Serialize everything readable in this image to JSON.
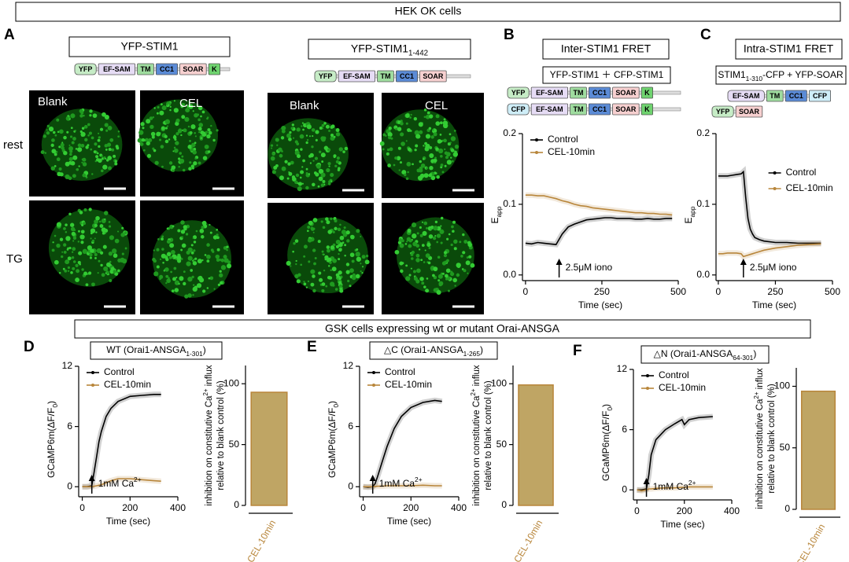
{
  "header": "HEK OK cells",
  "panel_labels": [
    "A",
    "B",
    "C",
    "D",
    "E",
    "F"
  ],
  "panel_a": {
    "constructs": [
      {
        "title": [
          {
            "text": "YFP-STIM1"
          }
        ],
        "domains": [
          {
            "name": "YFP",
            "color": "#c6ecc6"
          },
          {
            "name": "EF-SAM",
            "color": "#e6dcf5"
          },
          {
            "name": "TM",
            "color": "#9fdc9f"
          },
          {
            "name": "CC1",
            "color": "#5b8bd6"
          },
          {
            "name": "SOAR",
            "color": "#f7d0d0"
          },
          {
            "name": "K",
            "color": "#6fd36f"
          }
        ]
      },
      {
        "title": [
          {
            "text": "YFP-STIM1"
          },
          {
            "text": "1-442",
            "sub": true
          }
        ],
        "domains": [
          {
            "name": "YFP",
            "color": "#c6ecc6"
          },
          {
            "name": "EF-SAM",
            "color": "#e6dcf5"
          },
          {
            "name": "TM",
            "color": "#9fdc9f"
          },
          {
            "name": "CC1",
            "color": "#5b8bd6"
          },
          {
            "name": "SOAR",
            "color": "#f7d0d0"
          }
        ]
      }
    ],
    "image_labels": [
      "Blank",
      "CEL",
      "Blank",
      "CEL"
    ],
    "row_labels": [
      "rest",
      "TG"
    ]
  },
  "panel_b": {
    "title": "Inter-STIM1 FRET",
    "subtitle": [
      {
        "text": "YFP-STIM1 ＋ CFP-STIM1"
      }
    ],
    "constructs": [
      [
        {
          "name": "YFP",
          "color": "#c6ecc6"
        },
        {
          "name": "EF-SAM",
          "color": "#e6dcf5"
        },
        {
          "name": "TM",
          "color": "#9fdc9f"
        },
        {
          "name": "CC1",
          "color": "#5b8bd6"
        },
        {
          "name": "SOAR",
          "color": "#f7d0d0"
        },
        {
          "name": "K",
          "color": "#6fd36f"
        }
      ],
      [
        {
          "name": "CFP",
          "color": "#cfeef8"
        },
        {
          "name": "EF-SAM",
          "color": "#e6dcf5"
        },
        {
          "name": "TM",
          "color": "#9fdc9f"
        },
        {
          "name": "CC1",
          "color": "#5b8bd6"
        },
        {
          "name": "SOAR",
          "color": "#f7d0d0"
        },
        {
          "name": "K",
          "color": "#6fd36f"
        }
      ]
    ]
  },
  "panel_c": {
    "title": "Intra-STIM1 FRET",
    "subtitle": [
      {
        "text": "STIM1"
      },
      {
        "text": "1-310",
        "sub": true
      },
      {
        "text": "-CFP + YFP-SOAR"
      }
    ],
    "constructs": [
      [
        {
          "name": "EF-SAM",
          "color": "#e6dcf5"
        },
        {
          "name": "TM",
          "color": "#9fdc9f"
        },
        {
          "name": "CC1",
          "color": "#5b8bd6"
        },
        {
          "name": "CFP",
          "color": "#cfeef8"
        }
      ],
      [
        {
          "name": "YFP",
          "color": "#c6ecc6"
        },
        {
          "name": "SOAR",
          "color": "#f7d0d0"
        }
      ]
    ]
  },
  "section_header": "GSK cells expressing wt or mutant Orai-ANSGA",
  "chart_data": [
    {
      "type": "line",
      "x": [
        0,
        20,
        40,
        60,
        80,
        100,
        120,
        140,
        160,
        180,
        200,
        220,
        240,
        260,
        280,
        300,
        320,
        340,
        360,
        380,
        400,
        420,
        440,
        460,
        480
      ],
      "series": [
        {
          "name": "Control",
          "color": "#000000",
          "values": [
            0.045,
            0.044,
            0.046,
            0.045,
            0.044,
            0.043,
            0.058,
            0.068,
            0.072,
            0.075,
            0.078,
            0.079,
            0.08,
            0.081,
            0.081,
            0.08,
            0.08,
            0.08,
            0.079,
            0.079,
            0.08,
            0.079,
            0.079,
            0.08,
            0.08
          ]
        },
        {
          "name": "CEL-10min",
          "color": "#b8863b",
          "values": [
            0.113,
            0.113,
            0.112,
            0.112,
            0.11,
            0.108,
            0.105,
            0.103,
            0.1,
            0.098,
            0.097,
            0.095,
            0.094,
            0.093,
            0.092,
            0.091,
            0.09,
            0.089,
            0.088,
            0.088,
            0.087,
            0.087,
            0.086,
            0.086,
            0.085
          ]
        }
      ],
      "xlim": [
        -10,
        500
      ],
      "ylim": [
        -0.008,
        0.2
      ],
      "xticks": [
        0,
        250,
        500
      ],
      "yticks": [
        {
          "value": 0,
          "label": "0.0"
        },
        0.1,
        0.2
      ],
      "xlabel": [
        {
          "text": "Time (sec)"
        }
      ],
      "ylabel": [
        {
          "text": "E"
        },
        {
          "text": "app",
          "sub": true
        }
      ],
      "legend": "upper left",
      "annotation": {
        "text": [
          {
            "text": "2.5μM iono"
          }
        ],
        "x": 110
      }
    },
    {
      "type": "line",
      "x": [
        0,
        20,
        40,
        60,
        80,
        100,
        110,
        120,
        130,
        140,
        150,
        160,
        180,
        200,
        250,
        300,
        350,
        400,
        450
      ],
      "series": [
        {
          "name": "Control",
          "color": "#000000",
          "values": [
            0.14,
            0.14,
            0.14,
            0.141,
            0.142,
            0.143,
            0.146,
            0.11,
            0.08,
            0.065,
            0.058,
            0.053,
            0.05,
            0.048,
            0.046,
            0.046,
            0.045,
            0.045,
            0.045
          ]
        },
        {
          "name": "CEL-10min",
          "color": "#b8863b",
          "values": [
            0.03,
            0.03,
            0.031,
            0.031,
            0.031,
            0.03,
            0.026,
            0.027,
            0.028,
            0.029,
            0.03,
            0.031,
            0.033,
            0.035,
            0.038,
            0.04,
            0.042,
            0.043,
            0.044
          ]
        }
      ],
      "xlim": [
        -10,
        500
      ],
      "ylim": [
        -0.008,
        0.2
      ],
      "xticks": [
        0,
        250,
        500
      ],
      "yticks": [
        {
          "value": 0,
          "label": "0.0"
        },
        0.1,
        0.2
      ],
      "xlabel": [
        {
          "text": "Time (sec)"
        }
      ],
      "ylabel": [
        {
          "text": "E"
        },
        {
          "text": "app",
          "sub": true
        }
      ],
      "legend": "upper right",
      "annotation": {
        "text": [
          {
            "text": "2.5μM iono"
          }
        ],
        "x": 110
      }
    },
    {
      "type": "line",
      "title": [
        {
          "text": "WT (Orai1-ANSGA"
        },
        {
          "text": "1-301",
          "sub": true
        },
        {
          "text": ")"
        }
      ],
      "x": [
        0,
        20,
        40,
        50,
        60,
        70,
        80,
        100,
        120,
        150,
        200,
        250,
        300,
        330
      ],
      "series": [
        {
          "name": "Control",
          "color": "#000000",
          "values": [
            0,
            0,
            0.1,
            1.5,
            3,
            4.5,
            5.5,
            7,
            7.8,
            8.5,
            9,
            9.1,
            9.2,
            9.2
          ]
        },
        {
          "name": "CEL-10min",
          "color": "#b8863b",
          "values": [
            0,
            0,
            0,
            0.05,
            0.1,
            0.15,
            0.2,
            0.4,
            0.6,
            0.8,
            0.8,
            0.7,
            0.6,
            0.55
          ]
        }
      ],
      "xlim": [
        -15,
        400
      ],
      "ylim": [
        -1,
        12
      ],
      "xticks": [
        0,
        200,
        400
      ],
      "yticks": [
        0,
        6,
        12
      ],
      "xlabel": [
        {
          "text": "Time (sec)"
        }
      ],
      "ylabel": [
        {
          "text": "GCaMP6m(ΔF/F"
        },
        {
          "text": "0",
          "sub": true
        },
        {
          "text": ")"
        }
      ],
      "legend": "upper left",
      "annotation": {
        "text": [
          {
            "text": "1mM Ca"
          },
          {
            "text": "2+",
            "sup": true
          }
        ],
        "x": 40
      }
    },
    {
      "type": "bar",
      "categories": [
        "CEL-10min"
      ],
      "values": [
        93
      ],
      "color": "#bfa564",
      "edge_color": "#b8863b",
      "ylim": [
        0,
        115
      ],
      "yticks": [
        0,
        50,
        100
      ],
      "ylabel": [
        [
          {
            "text": "inhibition on constitutive Ca"
          },
          {
            "text": "2+",
            "sup": true
          },
          {
            "text": " influx"
          }
        ],
        [
          {
            "text": "relative to blank control (%)"
          }
        ]
      ]
    },
    {
      "type": "line",
      "title": [
        {
          "text": "△C (Orai1-ANSGA"
        },
        {
          "text": "1-265",
          "sub": true
        },
        {
          "text": ")"
        }
      ],
      "x": [
        0,
        20,
        40,
        50,
        60,
        80,
        100,
        130,
        160,
        200,
        250,
        300,
        330
      ],
      "series": [
        {
          "name": "Control",
          "color": "#000000",
          "values": [
            0,
            -0.05,
            0,
            0.3,
            1,
            2.5,
            4,
            5.8,
            7,
            7.9,
            8.4,
            8.6,
            8.5
          ]
        },
        {
          "name": "CEL-10min",
          "color": "#b8863b",
          "values": [
            0,
            0,
            0,
            0,
            0.05,
            0.05,
            0.1,
            0.1,
            0.1,
            0.1,
            0.15,
            0.1,
            0.1
          ]
        }
      ],
      "xlim": [
        -15,
        400
      ],
      "ylim": [
        -1,
        12
      ],
      "xticks": [
        0,
        200,
        400
      ],
      "yticks": [
        0,
        6,
        12
      ],
      "xlabel": [
        {
          "text": "Time (sec)"
        }
      ],
      "ylabel": [
        {
          "text": "GCaMP6m(ΔF/F"
        },
        {
          "text": "0",
          "sub": true
        },
        {
          "text": ")"
        }
      ],
      "legend": "upper left",
      "annotation": {
        "text": [
          {
            "text": "1mM Ca"
          },
          {
            "text": "2+",
            "sup": true
          }
        ],
        "x": 40
      }
    },
    {
      "type": "bar",
      "categories": [
        "CEL-10min"
      ],
      "values": [
        99
      ],
      "color": "#bfa564",
      "edge_color": "#b8863b",
      "ylim": [
        0,
        115
      ],
      "yticks": [
        0,
        50,
        100
      ],
      "ylabel": [
        [
          {
            "text": "inhibition on constitutive Ca"
          },
          {
            "text": "2+",
            "sup": true
          },
          {
            "text": " influx"
          }
        ],
        [
          {
            "text": "relative to blank control (%)"
          }
        ]
      ]
    },
    {
      "type": "line",
      "title": [
        {
          "text": "△N (Orai1-ANSGA"
        },
        {
          "text": "64-301",
          "sub": true
        },
        {
          "text": ")"
        }
      ],
      "x": [
        0,
        20,
        40,
        50,
        60,
        80,
        120,
        160,
        190,
        200,
        220,
        260,
        320
      ],
      "series": [
        {
          "name": "Control",
          "color": "#000000",
          "values": [
            0,
            0,
            0.1,
            1.5,
            3.5,
            5,
            6,
            6.6,
            7,
            6.5,
            7,
            7.2,
            7.3
          ]
        },
        {
          "name": "CEL-10min",
          "color": "#b8863b",
          "values": [
            0,
            -0.1,
            0,
            0.1,
            0.1,
            0.15,
            0.2,
            0.2,
            0.25,
            0.25,
            0.3,
            0.3,
            0.3
          ]
        }
      ],
      "xlim": [
        -15,
        400
      ],
      "ylim": [
        -1,
        12
      ],
      "xticks": [
        0,
        200,
        400
      ],
      "yticks": [
        0,
        6,
        12
      ],
      "xlabel": [
        {
          "text": "Time (sec)"
        }
      ],
      "ylabel": [
        {
          "text": "GCaMP6m(ΔF/F"
        },
        {
          "text": "0",
          "sub": true
        },
        {
          "text": ")"
        }
      ],
      "legend": "upper left",
      "annotation": {
        "text": [
          {
            "text": "1mM Ca"
          },
          {
            "text": "2+",
            "sup": true
          }
        ],
        "x": 40
      }
    },
    {
      "type": "bar",
      "categories": [
        "CEL-10min"
      ],
      "values": [
        96
      ],
      "color": "#bfa564",
      "edge_color": "#b8863b",
      "ylim": [
        0,
        115
      ],
      "yticks": [
        0,
        50,
        100
      ],
      "ylabel": [
        [
          {
            "text": "inhibition on constitutive Ca"
          },
          {
            "text": "2+",
            "sup": true
          },
          {
            "text": " influx"
          }
        ],
        [
          {
            "text": "relative to blank control (%)"
          }
        ]
      ]
    }
  ]
}
